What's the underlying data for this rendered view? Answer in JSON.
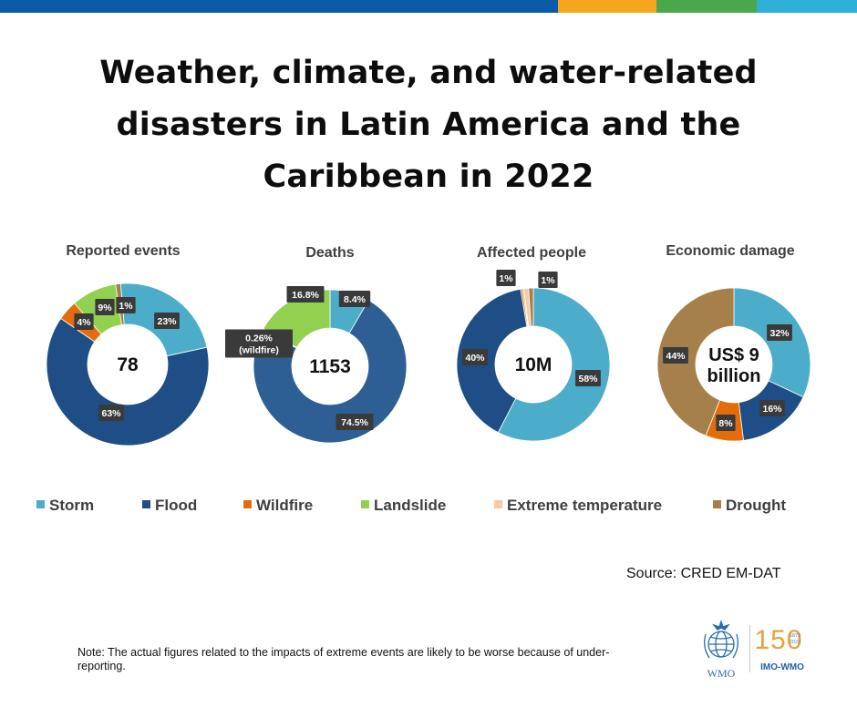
{
  "title_lines": [
    "Weather, climate, and water-related",
    "disasters in Latin America and the",
    "Caribbean in 2022"
  ],
  "colors": {
    "topbar": [
      "#0a5aa8",
      "#f5a61d",
      "#4aa84b",
      "#2fb0d8"
    ],
    "storm": "#4badc9",
    "flood": "#1f4e86",
    "flood_deaths": "#2e5f94",
    "wildfire": "#e46c0a",
    "landslide": "#92d050",
    "extreme_temperature": "#f9c9a2",
    "drought": "#a5804a",
    "label_box": "#3a3a3a"
  },
  "legend": [
    {
      "label": "Storm",
      "color": "#4badc9"
    },
    {
      "label": "Flood",
      "color": "#1f4e86"
    },
    {
      "label": "Wildfire",
      "color": "#e46c0a"
    },
    {
      "label": "Landslide",
      "color": "#92d050"
    },
    {
      "label": "Extreme temperature",
      "color": "#f9c9a2"
    },
    {
      "label": "Drought",
      "color": "#a5804a"
    }
  ],
  "chart_data": [
    {
      "type": "pie",
      "title": "Reported events",
      "center_label": "78",
      "slices": [
        {
          "category": "Storm",
          "value": 23,
          "label": "23%",
          "color": "#4badc9"
        },
        {
          "category": "Flood",
          "value": 63,
          "label": "63%",
          "color": "#1f4e86"
        },
        {
          "category": "Wildfire",
          "value": 4,
          "label": "4%",
          "color": "#e46c0a"
        },
        {
          "category": "Landslide",
          "value": 9,
          "label": "9%",
          "color": "#92d050"
        },
        {
          "category": "Drought",
          "value": 1,
          "label": "1%",
          "color": "#a5804a"
        }
      ]
    },
    {
      "type": "pie",
      "title": "Deaths",
      "center_label": "1153",
      "slices": [
        {
          "category": "Storm",
          "value": 8.4,
          "label": "8.4%",
          "color": "#4badc9"
        },
        {
          "category": "Flood",
          "value": 74.5,
          "label": "74.5%",
          "color": "#2e5f94"
        },
        {
          "category": "Wildfire",
          "value": 0.26,
          "label": "0.26%\n(wildfire)",
          "color": "#e46c0a"
        },
        {
          "category": "Landslide",
          "value": 16.8,
          "label": "16.8%",
          "color": "#92d050"
        }
      ]
    },
    {
      "type": "pie",
      "title": "Affected people",
      "center_label": "10M",
      "slices": [
        {
          "category": "Storm",
          "value": 58,
          "label": "58%",
          "color": "#4badc9"
        },
        {
          "category": "Flood",
          "value": 40,
          "label": "40%",
          "color": "#1f4e86"
        },
        {
          "category": "Wildfire",
          "value": 0.4,
          "label": "",
          "color": "#e46c0a"
        },
        {
          "category": "Landslide",
          "value": 0.3,
          "label": "",
          "color": "#92d050"
        },
        {
          "category": "Extreme temperature",
          "value": 1,
          "label": "1%",
          "color": "#f9c9a2"
        },
        {
          "category": "Drought",
          "value": 1,
          "label": "1%",
          "color": "#a5804a"
        }
      ]
    },
    {
      "type": "pie",
      "title": "Economic damage",
      "center_label": "US$ 9\nbillion",
      "slices": [
        {
          "category": "Storm",
          "value": 32,
          "label": "32%",
          "color": "#4badc9"
        },
        {
          "category": "Flood",
          "value": 16,
          "label": "16%",
          "color": "#1f4e86"
        },
        {
          "category": "Wildfire",
          "value": 8,
          "label": "8%",
          "color": "#e46c0a"
        },
        {
          "category": "Drought",
          "value": 44,
          "label": "44%",
          "color": "#a5804a"
        }
      ]
    }
  ],
  "source": "Source: CRED EM-DAT",
  "note": "Note: The actual figures related to the impacts of extreme events are likely to be worse because of under-reporting.",
  "logos": {
    "wmo": "WMO",
    "anniversary_numerals": "150",
    "anniversary_years": [
      "1873",
      "2023"
    ],
    "anniversary_caption": "IMO-WMO"
  }
}
